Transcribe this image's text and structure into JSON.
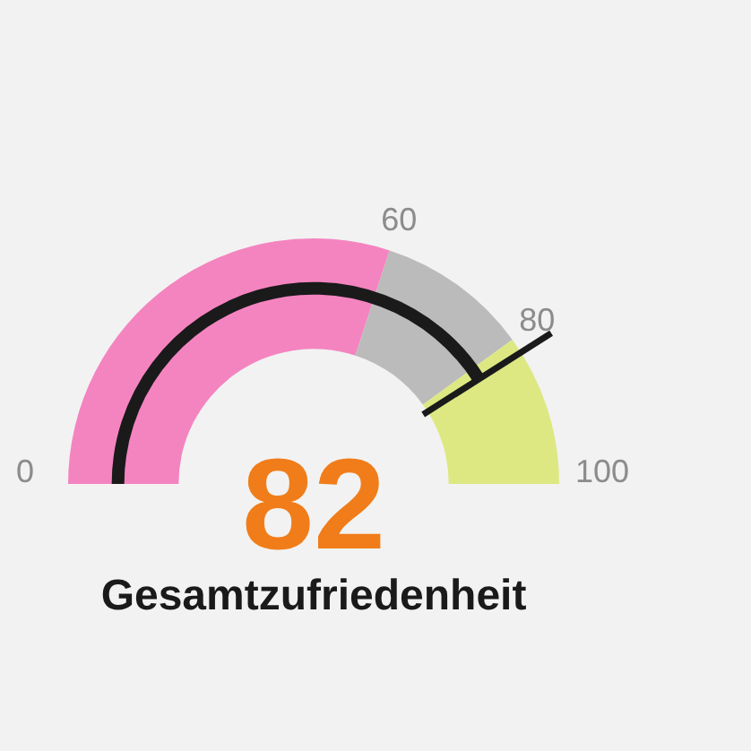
{
  "chart_data": {
    "type": "donut",
    "title": "Gesamtzufriedenheit",
    "categories": [
      null,
      null,
      null
    ],
    "values": [
      60,
      20,
      20
    ],
    "colors": [
      "#f484c0",
      "#bbbbbb",
      "#dde883"
    ],
    "annotations": [
      "0",
      "60",
      "80",
      "100",
      "82"
    ],
    "legend": false
  }
}
